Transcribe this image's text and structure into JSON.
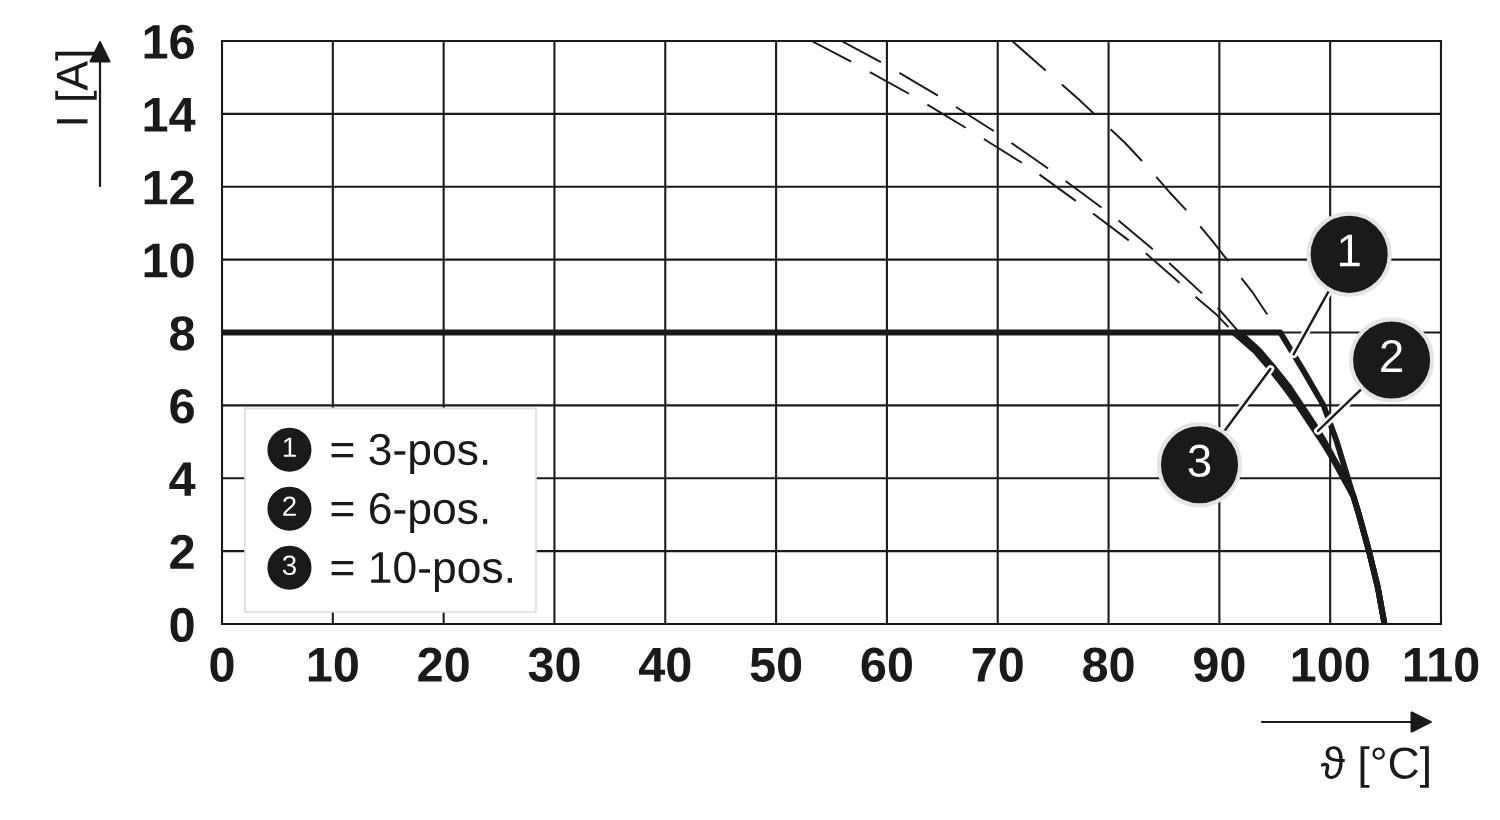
{
  "chart_data": {
    "type": "line",
    "xlabel": "ϑ [°C]",
    "ylabel": "I [A]",
    "xlim": [
      0,
      110
    ],
    "xticks": [
      0,
      10,
      20,
      30,
      40,
      50,
      60,
      70,
      80,
      90,
      100,
      110
    ],
    "ylim": [
      0,
      16
    ],
    "yticks": [
      0,
      2,
      4,
      6,
      8,
      10,
      12,
      14,
      16
    ],
    "grid": true,
    "legend": "bottom left",
    "annotations": [
      {
        "text": "1",
        "x": 96.7,
        "y": 7.4
      },
      {
        "text": "2",
        "x": 98.9,
        "y": 5.3
      },
      {
        "text": "3",
        "x": 94.6,
        "y": 7.0
      }
    ],
    "series": [
      {
        "name": "= 3-pos.",
        "color": "#1a1a1a",
        "line_style": "solid",
        "x": [
          0,
          95.5,
          97.5,
          99.4,
          100.6,
          101.6,
          102.1,
          102.6,
          103.5,
          104.3,
          104.9
        ],
        "values": [
          8,
          8,
          7,
          6,
          5,
          4,
          3.5,
          3,
          2,
          1,
          0
        ]
      },
      {
        "name": "= 6-pos.",
        "color": "#1a1a1a",
        "line_style": "solid",
        "x": [
          91.8,
          93.6,
          95.0,
          96.3,
          97.4,
          98.5,
          99.5,
          100.4,
          101.3,
          102.1,
          102.6,
          103.5,
          104.3,
          104.9
        ],
        "values": [
          8,
          7.5,
          7,
          6.5,
          6,
          5.5,
          5,
          4.5,
          4,
          3.5,
          3,
          2,
          1,
          0
        ]
      },
      {
        "name": "= 10-pos.",
        "color": "#1a1a1a",
        "line_style": "solid",
        "x": [
          91.3,
          93.2,
          94.6,
          95.9,
          97.1,
          98.2,
          99.3,
          100.3,
          101.2,
          102.1,
          102.6,
          103.5,
          104.3,
          104.9
        ],
        "values": [
          8,
          7.5,
          7,
          6.5,
          6,
          5.5,
          5,
          4.5,
          4,
          3.5,
          3,
          2,
          1,
          0
        ]
      },
      {
        "color": "#1a1a1a",
        "line_style": "dashed",
        "x": [
          71.3,
          74.3,
          77.3,
          79.4,
          81.5,
          83.5,
          85.5,
          87.5,
          89.4,
          91.2,
          93.0,
          94.2,
          95.5
        ],
        "values": [
          16,
          15.2,
          14.4,
          13.8,
          13.2,
          12.55,
          11.85,
          11.2,
          10.5,
          9.8,
          9.1,
          8.55,
          8
        ]
      },
      {
        "color": "#1a1a1a",
        "line_style": "dashed",
        "x": [
          55.9,
          59.6,
          65.0,
          70.3,
          75.5,
          80.6,
          85.4,
          89.9,
          91.8
        ],
        "values": [
          16,
          15.4,
          14.43,
          13.4,
          12.3,
          11.15,
          9.93,
          8.66,
          8
        ]
      },
      {
        "color": "#1a1a1a",
        "line_style": "dashed",
        "x": [
          53.2,
          56.8,
          62.3,
          67.7,
          73.1,
          78.2,
          83.3,
          88.0,
          89.6,
          91.3
        ],
        "values": [
          16,
          15.43,
          14.5,
          13.51,
          12.48,
          11.36,
          10.19,
          8.94,
          8.53,
          8
        ]
      }
    ]
  }
}
